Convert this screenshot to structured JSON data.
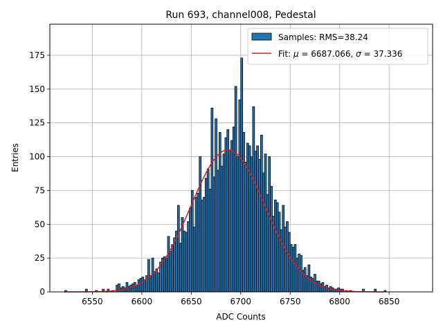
{
  "chart_data": {
    "type": "bar",
    "title": "Run 693, channel008, Pedestal",
    "xlabel": "ADC Counts",
    "ylabel": "Entries",
    "xlim": [
      6507,
      6894
    ],
    "ylim": [
      0,
      198
    ],
    "xticks": [
      "6550",
      "6600",
      "6650",
      "6700",
      "6750",
      "6800",
      "6850"
    ],
    "yticks": [
      "0",
      "25",
      "50",
      "75",
      "100",
      "125",
      "150",
      "175"
    ],
    "grid": true,
    "legend_position": "top-right",
    "colors": {
      "bars": "#1f77b4",
      "bar_edge": "#000000",
      "fit": "#e41a1c",
      "grid": "#b0b0b0"
    },
    "histogram": {
      "name": "Samples: RMS=38.24",
      "bins": [
        [
          6522,
          1
        ],
        [
          6543,
          2
        ],
        [
          6553,
          1
        ],
        [
          6560,
          2
        ],
        [
          6565,
          2
        ],
        [
          6570,
          1
        ],
        [
          6574,
          5
        ],
        [
          6576,
          6
        ],
        [
          6578,
          3
        ],
        [
          6580,
          4
        ],
        [
          6582,
          3
        ],
        [
          6584,
          7
        ],
        [
          6586,
          4
        ],
        [
          6588,
          5
        ],
        [
          6590,
          6
        ],
        [
          6592,
          7
        ],
        [
          6594,
          5
        ],
        [
          6596,
          9
        ],
        [
          6598,
          10
        ],
        [
          6600,
          11
        ],
        [
          6602,
          9
        ],
        [
          6604,
          12
        ],
        [
          6606,
          24
        ],
        [
          6608,
          12
        ],
        [
          6610,
          25
        ],
        [
          6612,
          15
        ],
        [
          6614,
          17
        ],
        [
          6616,
          14
        ],
        [
          6618,
          22
        ],
        [
          6620,
          25
        ],
        [
          6622,
          26
        ],
        [
          6624,
          25
        ],
        [
          6626,
          41
        ],
        [
          6628,
          30
        ],
        [
          6630,
          35
        ],
        [
          6632,
          40
        ],
        [
          6634,
          45
        ],
        [
          6636,
          64
        ],
        [
          6638,
          36
        ],
        [
          6640,
          55
        ],
        [
          6642,
          45
        ],
        [
          6644,
          44
        ],
        [
          6646,
          52
        ],
        [
          6648,
          62
        ],
        [
          6650,
          75
        ],
        [
          6652,
          48
        ],
        [
          6654,
          70
        ],
        [
          6656,
          73
        ],
        [
          6658,
          100
        ],
        [
          6660,
          68
        ],
        [
          6662,
          70
        ],
        [
          6664,
          84
        ],
        [
          6666,
          91
        ],
        [
          6668,
          76
        ],
        [
          6670,
          136
        ],
        [
          6672,
          85
        ],
        [
          6674,
          128
        ],
        [
          6676,
          90
        ],
        [
          6678,
          118
        ],
        [
          6680,
          93
        ],
        [
          6682,
          102
        ],
        [
          6684,
          114
        ],
        [
          6686,
          120
        ],
        [
          6688,
          105
        ],
        [
          6690,
          112
        ],
        [
          6692,
          122
        ],
        [
          6694,
          152
        ],
        [
          6696,
          100
        ],
        [
          6698,
          142
        ],
        [
          6700,
          173
        ],
        [
          6702,
          118
        ],
        [
          6704,
          96
        ],
        [
          6706,
          110
        ],
        [
          6708,
          108
        ],
        [
          6710,
          100
        ],
        [
          6712,
          137
        ],
        [
          6714,
          104
        ],
        [
          6716,
          108
        ],
        [
          6718,
          98
        ],
        [
          6720,
          116
        ],
        [
          6722,
          88
        ],
        [
          6724,
          102
        ],
        [
          6726,
          72
        ],
        [
          6728,
          100
        ],
        [
          6730,
          78
        ],
        [
          6732,
          56
        ],
        [
          6734,
          68
        ],
        [
          6736,
          66
        ],
        [
          6738,
          59
        ],
        [
          6740,
          46
        ],
        [
          6742,
          64
        ],
        [
          6744,
          48
        ],
        [
          6746,
          52
        ],
        [
          6748,
          44
        ],
        [
          6750,
          35
        ],
        [
          6752,
          33
        ],
        [
          6754,
          35
        ],
        [
          6756,
          25
        ],
        [
          6758,
          28
        ],
        [
          6760,
          27
        ],
        [
          6762,
          16
        ],
        [
          6764,
          18
        ],
        [
          6766,
          12
        ],
        [
          6768,
          20
        ],
        [
          6770,
          11
        ],
        [
          6772,
          10
        ],
        [
          6774,
          13
        ],
        [
          6776,
          8
        ],
        [
          6778,
          8
        ],
        [
          6780,
          6
        ],
        [
          6782,
          7
        ],
        [
          6784,
          4
        ],
        [
          6786,
          5
        ],
        [
          6788,
          3
        ],
        [
          6790,
          4
        ],
        [
          6792,
          3
        ],
        [
          6794,
          2
        ],
        [
          6796,
          2
        ],
        [
          6798,
          3
        ],
        [
          6800,
          2
        ],
        [
          6802,
          2
        ],
        [
          6806,
          1
        ],
        [
          6810,
          1
        ],
        [
          6823,
          2
        ],
        [
          6835,
          2
        ],
        [
          6845,
          1
        ]
      ]
    },
    "fit": {
      "name": "Fit: μ = 6687.066, σ = 37.336",
      "name_parts": [
        "Fit: ",
        "μ",
        " = 6687.066, ",
        "σ",
        " = 37.336"
      ],
      "mu": 6687.066,
      "sigma": 37.336,
      "amplitude": 105,
      "x_range": [
        6522,
        6845
      ]
    }
  }
}
